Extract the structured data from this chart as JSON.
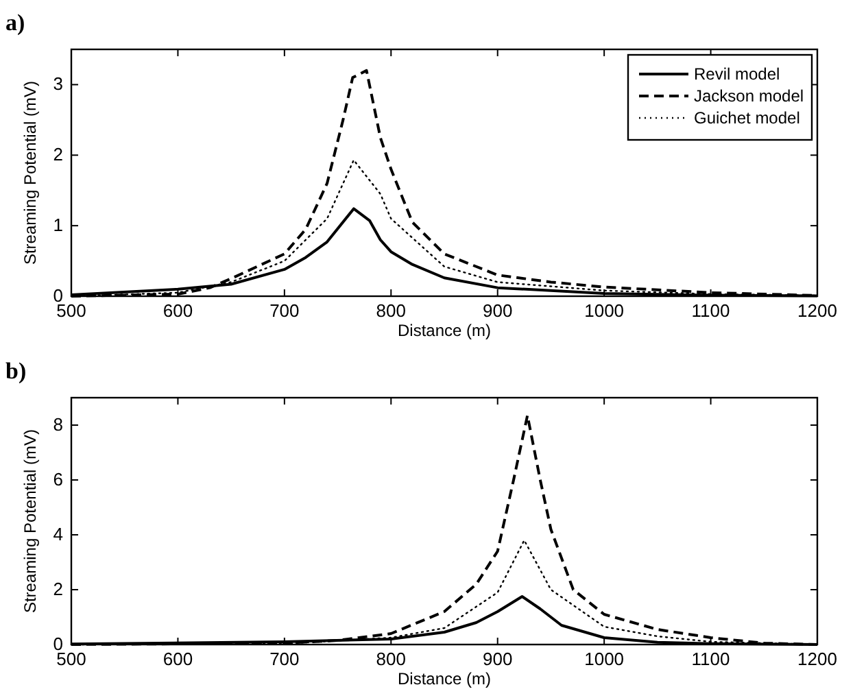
{
  "chart_data": [
    {
      "type": "line",
      "title": "a)",
      "xlabel": "Distance (m)",
      "ylabel": "Streaming Potential (mV)",
      "xlim": [
        500,
        1200
      ],
      "xticks": [
        500,
        600,
        700,
        800,
        900,
        1000,
        1100,
        1200
      ],
      "ylim": [
        0,
        3.5
      ],
      "yticks": [
        0,
        1,
        2,
        3
      ],
      "legend": "top right",
      "grid": false,
      "series": [
        {
          "name": "Revil model",
          "color": "#000000",
          "line_style": "solid",
          "x": [
            500,
            600,
            650,
            700,
            720,
            740,
            765,
            780,
            790,
            800,
            820,
            850,
            900,
            1000,
            1100,
            1200
          ],
          "values": [
            0.02,
            0.1,
            0.17,
            0.38,
            0.55,
            0.77,
            1.24,
            1.07,
            0.8,
            0.63,
            0.45,
            0.26,
            0.12,
            0.04,
            0.015,
            0.005
          ]
        },
        {
          "name": "Jackson model",
          "color": "#000000",
          "line_style": "dashed",
          "x": [
            500,
            600,
            630,
            650,
            700,
            720,
            740,
            755,
            764,
            777,
            790,
            800,
            820,
            850,
            900,
            950,
            1000,
            1100,
            1200
          ],
          "values": [
            0,
            0.03,
            0.12,
            0.25,
            0.6,
            0.95,
            1.6,
            2.5,
            3.1,
            3.2,
            2.25,
            1.8,
            1.05,
            0.6,
            0.3,
            0.2,
            0.13,
            0.05,
            0.01
          ]
        },
        {
          "name": "Guichet model",
          "color": "#000000",
          "line_style": "dotted",
          "x": [
            500,
            600,
            650,
            700,
            740,
            765,
            790,
            800,
            850,
            900,
            1000,
            1100,
            1200
          ],
          "values": [
            0,
            0.05,
            0.2,
            0.5,
            1.1,
            1.93,
            1.45,
            1.1,
            0.42,
            0.2,
            0.08,
            0.03,
            0.01
          ]
        }
      ]
    },
    {
      "type": "line",
      "title": "b)",
      "xlabel": "Distance (m)",
      "ylabel": "Streaming Potential (mV)",
      "xlim": [
        500,
        1200
      ],
      "xticks": [
        500,
        600,
        700,
        800,
        900,
        1000,
        1100,
        1200
      ],
      "ylim": [
        0,
        9
      ],
      "yticks": [
        0,
        2,
        4,
        6,
        8
      ],
      "legend": false,
      "grid": false,
      "series": [
        {
          "color": "#000000",
          "line_style": "solid",
          "x": [
            500,
            700,
            800,
            850,
            880,
            900,
            923,
            940,
            960,
            1000,
            1050,
            1100,
            1200
          ],
          "values": [
            0.02,
            0.1,
            0.2,
            0.45,
            0.8,
            1.2,
            1.75,
            1.3,
            0.7,
            0.25,
            0.08,
            0.03,
            0
          ]
        },
        {
          "color": "#000000",
          "line_style": "dashed",
          "x": [
            500,
            700,
            750,
            800,
            850,
            880,
            900,
            915,
            928,
            940,
            950,
            971,
            1000,
            1050,
            1100,
            1150,
            1200
          ],
          "values": [
            0,
            0.05,
            0.15,
            0.4,
            1.2,
            2.2,
            3.4,
            6,
            8.35,
            6,
            4.2,
            2,
            1.1,
            0.55,
            0.25,
            0.05,
            0
          ]
        },
        {
          "color": "#000000",
          "line_style": "dotted",
          "x": [
            500,
            700,
            800,
            850,
            900,
            925,
            950,
            1000,
            1050,
            1100,
            1200
          ],
          "values": [
            0,
            0.03,
            0.25,
            0.6,
            1.9,
            3.8,
            2,
            0.65,
            0.3,
            0.1,
            0
          ]
        }
      ]
    }
  ]
}
